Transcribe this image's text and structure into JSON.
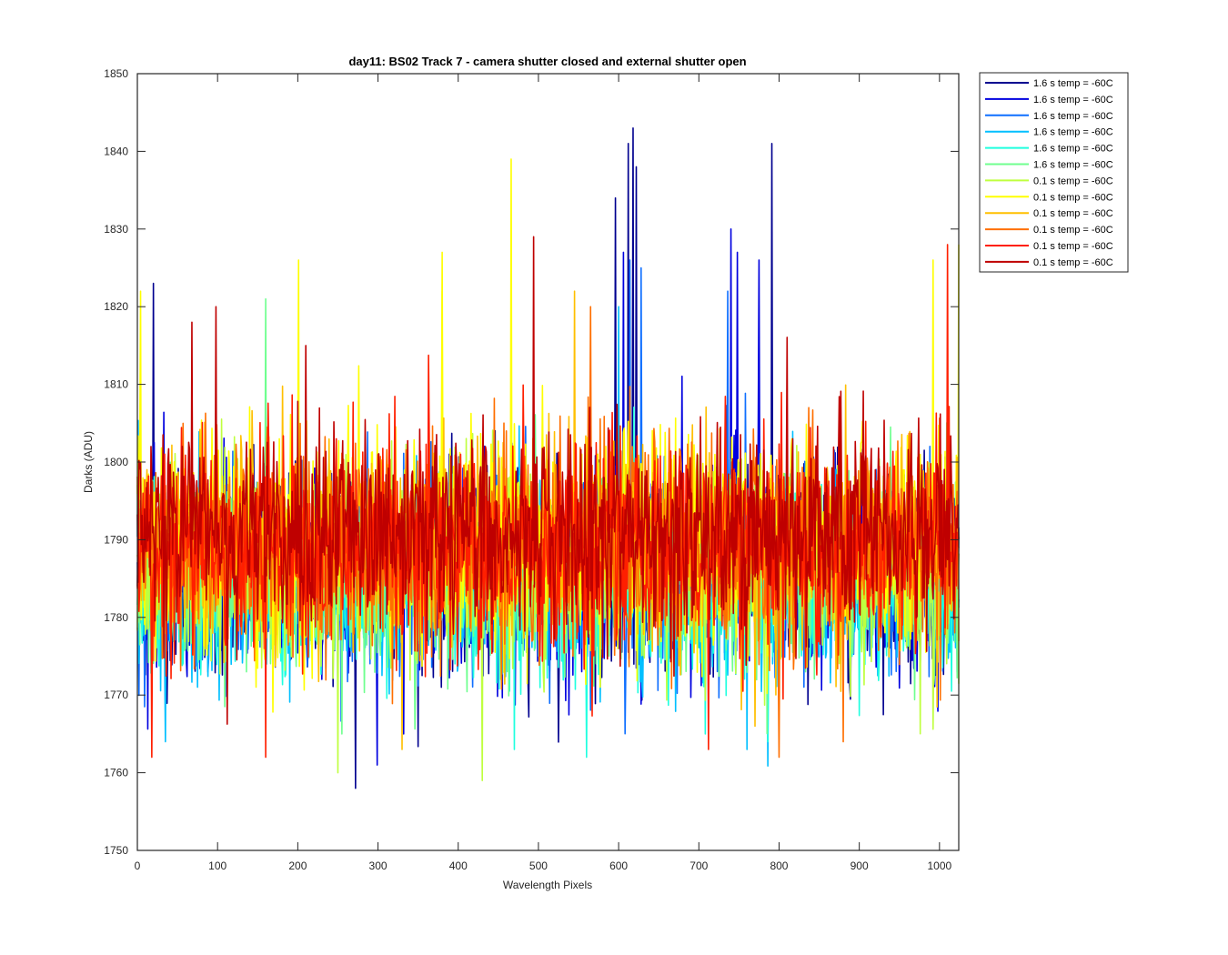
{
  "chart_data": {
    "type": "line",
    "title": "day11: BS02  Track 7 - camera shutter closed and external shutter open",
    "xlabel": "Wavelength Pixels",
    "ylabel": "Darks (ADU)",
    "xlim": [
      0,
      1024
    ],
    "ylim": [
      1750,
      1850
    ],
    "xticks": [
      0,
      100,
      200,
      300,
      400,
      500,
      600,
      700,
      800,
      900,
      1000
    ],
    "yticks": [
      1750,
      1760,
      1770,
      1780,
      1790,
      1800,
      1810,
      1820,
      1830,
      1840,
      1850
    ],
    "grid": false,
    "legend_position": "outside-top-right",
    "series": [
      {
        "name": "1.6 s temp = -60C",
        "color": "#00008F",
        "mean": 1786,
        "noise": 6.5,
        "features": [
          [
            618,
            1843
          ],
          [
            612,
            1841
          ],
          [
            791,
            1841
          ],
          [
            596,
            1834
          ],
          [
            622,
            1838
          ],
          [
            20,
            1823
          ],
          [
            272,
            1758
          ]
        ]
      },
      {
        "name": "1.6 s temp = -60C",
        "color": "#0000DF",
        "mean": 1786,
        "noise": 6.5,
        "features": [
          [
            740,
            1830
          ],
          [
            748,
            1827
          ],
          [
            775,
            1826
          ],
          [
            606,
            1827
          ],
          [
            299,
            1761
          ],
          [
            332,
            1765
          ]
        ]
      },
      {
        "name": "1.6 s temp = -60C",
        "color": "#0F6FFF",
        "mean": 1786,
        "noise": 6.5,
        "features": [
          [
            614,
            1826
          ],
          [
            628,
            1825
          ],
          [
            736,
            1822
          ],
          [
            250,
            1768
          ]
        ]
      },
      {
        "name": "1.6 s temp = -60C",
        "color": "#00BFFF",
        "mean": 1785,
        "noise": 6.0,
        "features": [
          [
            600,
            1820
          ],
          [
            35,
            1764
          ],
          [
            760,
            1763
          ]
        ]
      },
      {
        "name": "1.6 s temp = -60C",
        "color": "#1FFFDF",
        "mean": 1785,
        "noise": 6.0,
        "features": [
          [
            470,
            1763
          ],
          [
            560,
            1762
          ],
          [
            708,
            1765
          ],
          [
            786,
            1764
          ]
        ]
      },
      {
        "name": "1.6 s temp = -60C",
        "color": "#6FFF8F",
        "mean": 1785,
        "noise": 6.0,
        "features": [
          [
            160,
            1761
          ],
          [
            255,
            1765
          ],
          [
            160,
            1821
          ]
        ]
      },
      {
        "name": "0.1 s temp = -60C",
        "color": "#BFFF3F",
        "mean": 1787,
        "noise": 6.5,
        "features": [
          [
            430,
            1759
          ],
          [
            250,
            1760
          ],
          [
            380,
            1822
          ]
        ]
      },
      {
        "name": "0.1 s temp = -60C",
        "color": "#FFFF00",
        "mean": 1790,
        "noise": 7.0,
        "features": [
          [
            466,
            1839
          ],
          [
            380,
            1827
          ],
          [
            201,
            1826
          ],
          [
            992,
            1826
          ],
          [
            1024,
            1828
          ],
          [
            4,
            1822
          ]
        ]
      },
      {
        "name": "0.1 s temp = -60C",
        "color": "#FFBF00",
        "mean": 1789,
        "noise": 6.5,
        "features": [
          [
            545,
            1822
          ],
          [
            330,
            1763
          ],
          [
            770,
            1766
          ]
        ]
      },
      {
        "name": "0.1 s temp = -60C",
        "color": "#FF6F00",
        "mean": 1789,
        "noise": 6.5,
        "features": [
          [
            800,
            1762
          ],
          [
            565,
            1820
          ],
          [
            880,
            1764
          ]
        ]
      },
      {
        "name": "0.1 s temp = -60C",
        "color": "#FF1F00",
        "mean": 1789,
        "noise": 6.5,
        "features": [
          [
            18,
            1762
          ],
          [
            712,
            1763
          ],
          [
            160,
            1762
          ],
          [
            1010,
            1828
          ]
        ]
      },
      {
        "name": "0.1 s temp = -60C",
        "color": "#BF0000",
        "mean": 1791,
        "noise": 6.5,
        "features": [
          [
            494,
            1829
          ],
          [
            98,
            1820
          ],
          [
            68,
            1818
          ],
          [
            210,
            1815
          ]
        ]
      }
    ]
  }
}
